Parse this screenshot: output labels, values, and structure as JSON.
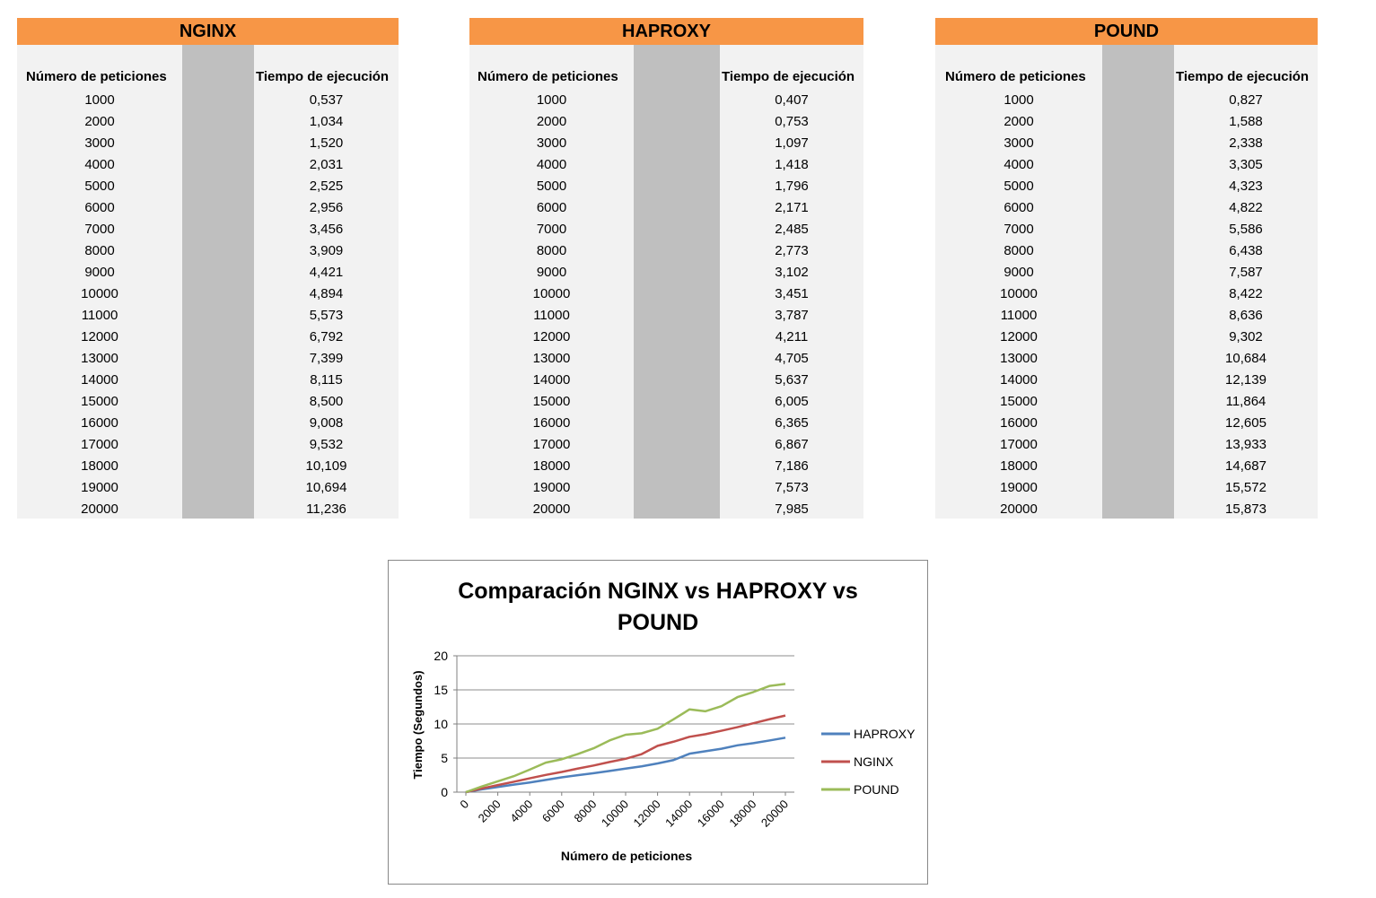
{
  "tables": [
    {
      "title": "NGINX",
      "col1_header": "Número de peticiones",
      "col2_header": "Tiempo de ejecución",
      "rows": [
        [
          "1000",
          "0,537"
        ],
        [
          "2000",
          "1,034"
        ],
        [
          "3000",
          "1,520"
        ],
        [
          "4000",
          "2,031"
        ],
        [
          "5000",
          "2,525"
        ],
        [
          "6000",
          "2,956"
        ],
        [
          "7000",
          "3,456"
        ],
        [
          "8000",
          "3,909"
        ],
        [
          "9000",
          "4,421"
        ],
        [
          "10000",
          "4,894"
        ],
        [
          "11000",
          "5,573"
        ],
        [
          "12000",
          "6,792"
        ],
        [
          "13000",
          "7,399"
        ],
        [
          "14000",
          "8,115"
        ],
        [
          "15000",
          "8,500"
        ],
        [
          "16000",
          "9,008"
        ],
        [
          "17000",
          "9,532"
        ],
        [
          "18000",
          "10,109"
        ],
        [
          "19000",
          "10,694"
        ],
        [
          "20000",
          "11,236"
        ]
      ]
    },
    {
      "title": "HAPROXY",
      "col1_header": "Número de peticiones",
      "col2_header": "Tiempo de ejecución",
      "rows": [
        [
          "1000",
          "0,407"
        ],
        [
          "2000",
          "0,753"
        ],
        [
          "3000",
          "1,097"
        ],
        [
          "4000",
          "1,418"
        ],
        [
          "5000",
          "1,796"
        ],
        [
          "6000",
          "2,171"
        ],
        [
          "7000",
          "2,485"
        ],
        [
          "8000",
          "2,773"
        ],
        [
          "9000",
          "3,102"
        ],
        [
          "10000",
          "3,451"
        ],
        [
          "11000",
          "3,787"
        ],
        [
          "12000",
          "4,211"
        ],
        [
          "13000",
          "4,705"
        ],
        [
          "14000",
          "5,637"
        ],
        [
          "15000",
          "6,005"
        ],
        [
          "16000",
          "6,365"
        ],
        [
          "17000",
          "6,867"
        ],
        [
          "18000",
          "7,186"
        ],
        [
          "19000",
          "7,573"
        ],
        [
          "20000",
          "7,985"
        ]
      ]
    },
    {
      "title": "POUND",
      "col1_header": "Número de peticiones",
      "col2_header": "Tiempo de ejecución",
      "rows": [
        [
          "1000",
          "0,827"
        ],
        [
          "2000",
          "1,588"
        ],
        [
          "3000",
          "2,338"
        ],
        [
          "4000",
          "3,305"
        ],
        [
          "5000",
          "4,323"
        ],
        [
          "6000",
          "4,822"
        ],
        [
          "7000",
          "5,586"
        ],
        [
          "8000",
          "6,438"
        ],
        [
          "9000",
          "7,587"
        ],
        [
          "10000",
          "8,422"
        ],
        [
          "11000",
          "8,636"
        ],
        [
          "12000",
          "9,302"
        ],
        [
          "13000",
          "10,684"
        ],
        [
          "14000",
          "12,139"
        ],
        [
          "15000",
          "11,864"
        ],
        [
          "16000",
          "12,605"
        ],
        [
          "17000",
          "13,933"
        ],
        [
          "18000",
          "14,687"
        ],
        [
          "19000",
          "15,572"
        ],
        [
          "20000",
          "15,873"
        ]
      ]
    }
  ],
  "chart_data": {
    "type": "line",
    "title": "Comparación NGINX vs HAPROXY vs POUND",
    "title_lines": [
      "Comparación NGINX vs HAPROXY vs",
      "POUND"
    ],
    "xlabel": "Número de peticiones",
    "ylabel": "Tiempo (Segundos)",
    "ylim": [
      0,
      20
    ],
    "yticks": [
      0,
      5,
      10,
      15,
      20
    ],
    "xticks": [
      0,
      2000,
      4000,
      6000,
      8000,
      10000,
      12000,
      14000,
      16000,
      18000,
      20000
    ],
    "grid": "horizontal",
    "legend": "right",
    "x": [
      0,
      1000,
      2000,
      3000,
      4000,
      5000,
      6000,
      7000,
      8000,
      9000,
      10000,
      11000,
      12000,
      13000,
      14000,
      15000,
      16000,
      17000,
      18000,
      19000,
      20000
    ],
    "series": [
      {
        "name": "HAPROXY",
        "color": "#4f81bd",
        "values": [
          0,
          0.407,
          0.753,
          1.097,
          1.418,
          1.796,
          2.171,
          2.485,
          2.773,
          3.102,
          3.451,
          3.787,
          4.211,
          4.705,
          5.637,
          6.005,
          6.365,
          6.867,
          7.186,
          7.573,
          7.985
        ]
      },
      {
        "name": "NGINX",
        "color": "#c0504d",
        "values": [
          0,
          0.537,
          1.034,
          1.52,
          2.031,
          2.525,
          2.956,
          3.456,
          3.909,
          4.421,
          4.894,
          5.573,
          6.792,
          7.399,
          8.115,
          8.5,
          9.008,
          9.532,
          10.109,
          10.694,
          11.236
        ]
      },
      {
        "name": "POUND",
        "color": "#9bbb59",
        "values": [
          0,
          0.827,
          1.588,
          2.338,
          3.305,
          4.323,
          4.822,
          5.586,
          6.438,
          7.587,
          8.422,
          8.636,
          9.302,
          10.684,
          12.139,
          11.864,
          12.605,
          13.933,
          14.687,
          15.572,
          15.873
        ]
      }
    ]
  }
}
